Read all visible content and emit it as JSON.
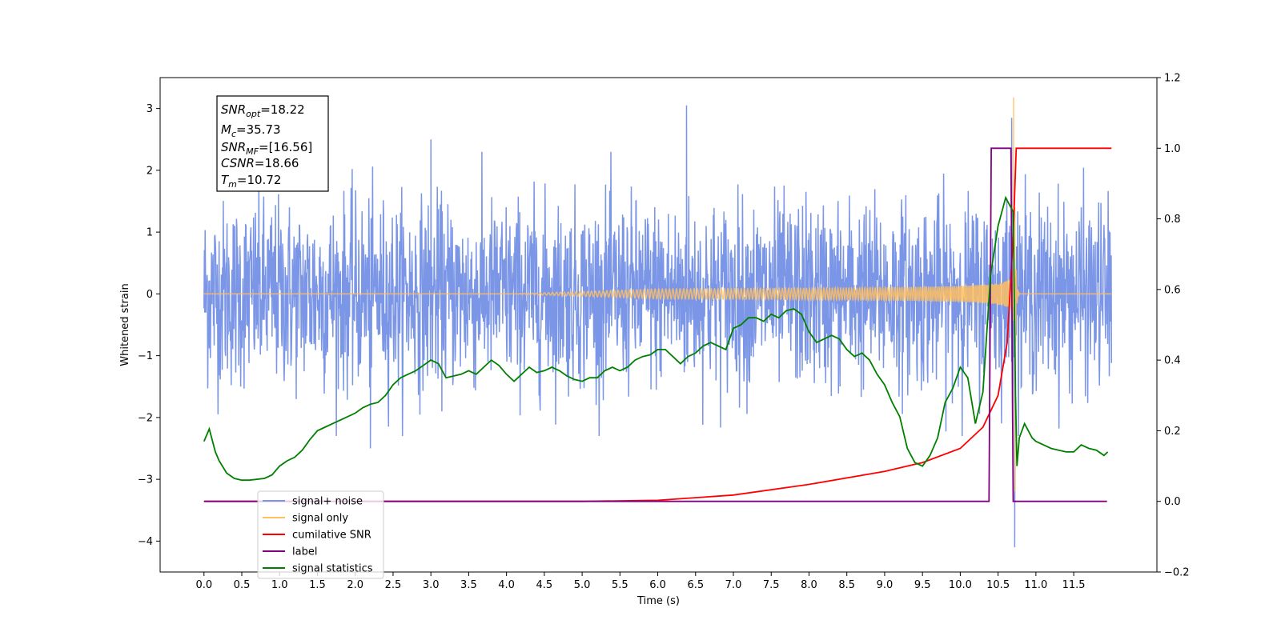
{
  "chart_data": {
    "type": "line",
    "title": "",
    "xlabel": "Time (s)",
    "ylabel": "Whitened strain",
    "ylabel_right": "",
    "xlim": [
      -0.58,
      12.6
    ],
    "ylim": [
      -4.5,
      3.5
    ],
    "ylim_right": [
      -0.2,
      1.2
    ],
    "grid": false,
    "legend_position": "lower-left",
    "x_ticks": [
      "0.0",
      "0.5",
      "1.0",
      "1.5",
      "2.0",
      "2.5",
      "3.0",
      "3.5",
      "4.0",
      "4.5",
      "5.0",
      "5.5",
      "6.0",
      "6.5",
      "7.0",
      "7.5",
      "8.0",
      "8.5",
      "9.0",
      "9.5",
      "10.0",
      "10.5",
      "11.0",
      "11.5"
    ],
    "y_ticks_left": [
      "3",
      "2",
      "1",
      "0",
      "−1",
      "−2",
      "−3",
      "−4"
    ],
    "y_ticks_right": [
      "1.2",
      "1.0",
      "0.8",
      "0.6",
      "0.4",
      "0.2",
      "0.0",
      "−0.2"
    ],
    "annotation": [
      {
        "sym": "SNR",
        "sub": "opt",
        "val": "=18.22"
      },
      {
        "sym": "M",
        "sub": "c",
        "val": "=35.73"
      },
      {
        "sym": "SNR",
        "sub": "MF",
        "val": "=[16.56]"
      },
      {
        "sym": "CSNR",
        "sub": "",
        "val": "=18.66"
      },
      {
        "sym": "T",
        "sub": "m",
        "val": "=10.72"
      }
    ],
    "series": [
      {
        "name": "signal+ noise",
        "axis": "left",
        "color": "#7b96e6",
        "kind": "noise",
        "x_range": [
          0.0,
          12.0
        ],
        "baseline_band": [
          -1.35,
          1.35
        ],
        "extremes": [
          [
            3.0,
            2.5
          ],
          [
            6.38,
            3.05
          ],
          [
            10.68,
            2.85
          ],
          [
            10.72,
            -4.1
          ],
          [
            2.2,
            -2.5
          ]
        ]
      },
      {
        "name": "signal only",
        "axis": "left",
        "color": "#ffc060",
        "kind": "chirp",
        "x_range": [
          0.0,
          12.0
        ],
        "merger_time": 10.72,
        "peak": 3.18,
        "trough": -3.2
      },
      {
        "name": "cumilative SNR",
        "axis": "right",
        "color": "#ff0000",
        "x": [
          0.0,
          5.0,
          6.0,
          7.0,
          8.0,
          9.0,
          9.5,
          10.0,
          10.3,
          10.5,
          10.62,
          10.7,
          10.74,
          12.0
        ],
        "y": [
          0.0,
          0.0,
          0.003,
          0.018,
          0.048,
          0.085,
          0.11,
          0.15,
          0.21,
          0.3,
          0.45,
          0.75,
          1.0,
          1.0
        ]
      },
      {
        "name": "label",
        "axis": "right",
        "color": "#800080",
        "x": [
          0.0,
          10.38,
          10.41,
          10.67,
          10.7,
          11.94
        ],
        "y": [
          0.0,
          0.0,
          1.0,
          1.0,
          0.0,
          0.0
        ]
      },
      {
        "name": "signal statistics",
        "axis": "right",
        "color": "#008000",
        "x": [
          0.0,
          0.07,
          0.15,
          0.2,
          0.3,
          0.4,
          0.5,
          0.6,
          0.8,
          0.9,
          1.0,
          1.1,
          1.2,
          1.3,
          1.4,
          1.5,
          1.6,
          1.7,
          1.8,
          1.9,
          2.0,
          2.1,
          2.2,
          2.3,
          2.4,
          2.5,
          2.6,
          2.7,
          2.8,
          2.9,
          3.0,
          3.1,
          3.2,
          3.3,
          3.4,
          3.5,
          3.6,
          3.8,
          3.9,
          4.0,
          4.1,
          4.2,
          4.3,
          4.4,
          4.5,
          4.6,
          4.7,
          4.8,
          4.9,
          5.0,
          5.1,
          5.2,
          5.3,
          5.4,
          5.5,
          5.6,
          5.7,
          5.8,
          5.9,
          6.0,
          6.1,
          6.2,
          6.3,
          6.4,
          6.5,
          6.6,
          6.7,
          6.8,
          6.9,
          7.0,
          7.1,
          7.2,
          7.3,
          7.4,
          7.5,
          7.6,
          7.7,
          7.8,
          7.9,
          8.0,
          8.1,
          8.2,
          8.3,
          8.4,
          8.5,
          8.6,
          8.7,
          8.8,
          8.9,
          9.0,
          9.1,
          9.2,
          9.3,
          9.4,
          9.5,
          9.6,
          9.7,
          9.8,
          9.9,
          10.0,
          10.1,
          10.2,
          10.3,
          10.4,
          10.5,
          10.6,
          10.7,
          10.73,
          10.75,
          10.78,
          10.85,
          10.9,
          10.95,
          11.0,
          11.1,
          11.2,
          11.3,
          11.4,
          11.5,
          11.6,
          11.7,
          11.8,
          11.9,
          11.95
        ],
        "y": [
          0.17,
          0.205,
          0.14,
          0.115,
          0.08,
          0.065,
          0.06,
          0.06,
          0.065,
          0.075,
          0.1,
          0.115,
          0.125,
          0.145,
          0.175,
          0.2,
          0.21,
          0.22,
          0.23,
          0.24,
          0.25,
          0.265,
          0.275,
          0.28,
          0.3,
          0.33,
          0.35,
          0.36,
          0.37,
          0.385,
          0.4,
          0.39,
          0.35,
          0.355,
          0.36,
          0.37,
          0.36,
          0.4,
          0.385,
          0.36,
          0.34,
          0.36,
          0.38,
          0.365,
          0.37,
          0.38,
          0.37,
          0.355,
          0.345,
          0.34,
          0.35,
          0.35,
          0.37,
          0.38,
          0.37,
          0.38,
          0.4,
          0.41,
          0.415,
          0.43,
          0.43,
          0.41,
          0.39,
          0.41,
          0.42,
          0.44,
          0.45,
          0.44,
          0.43,
          0.49,
          0.5,
          0.52,
          0.52,
          0.51,
          0.53,
          0.52,
          0.54,
          0.545,
          0.53,
          0.48,
          0.45,
          0.46,
          0.47,
          0.46,
          0.43,
          0.41,
          0.42,
          0.4,
          0.36,
          0.33,
          0.28,
          0.24,
          0.15,
          0.11,
          0.1,
          0.13,
          0.18,
          0.28,
          0.32,
          0.38,
          0.35,
          0.22,
          0.31,
          0.64,
          0.78,
          0.86,
          0.82,
          0.3,
          0.1,
          0.18,
          0.22,
          0.2,
          0.18,
          0.17,
          0.16,
          0.15,
          0.145,
          0.14,
          0.14,
          0.16,
          0.15,
          0.145,
          0.13,
          0.14
        ]
      }
    ]
  }
}
